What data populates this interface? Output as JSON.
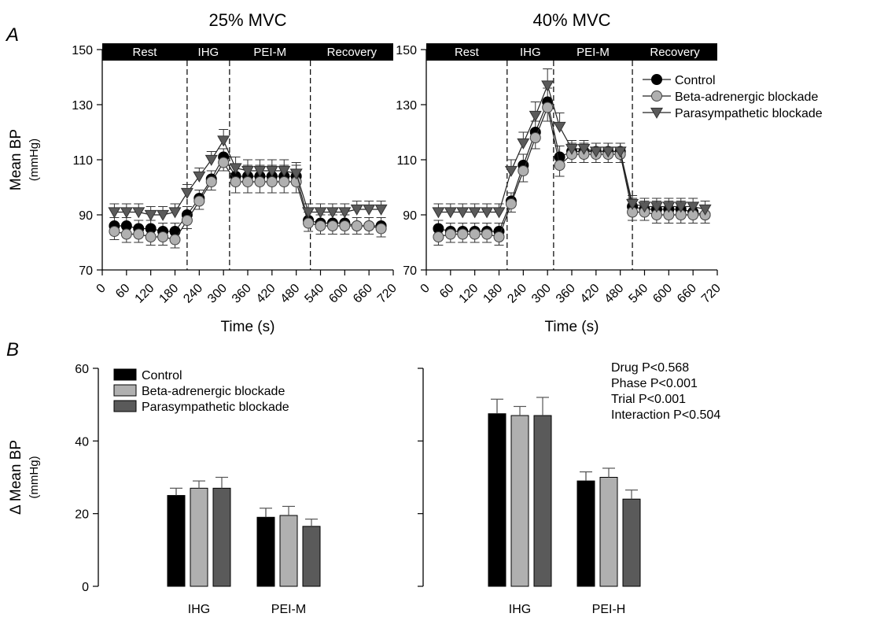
{
  "panel_labels": {
    "a": "A",
    "b": "B"
  },
  "colors": {
    "control": "#000000",
    "beta": "#b0b0b0",
    "para": "#5a5a5a",
    "axis": "#000000"
  },
  "phases": [
    "Rest",
    "IHG",
    "PEI-M",
    "Recovery"
  ],
  "legend_a": [
    "Control",
    "Beta-adrenergic blockade",
    "Parasympathetic blockade"
  ],
  "legend_b": [
    "Control",
    "Beta-adrenergic blockade",
    "Parasympathetic blockade"
  ],
  "stats": [
    "Drug P<0.568",
    "Phase P<0.001",
    "Trial  P<0.001",
    "Interaction  P<0.504"
  ],
  "chart_data": [
    {
      "type": "line",
      "title": "25% MVC",
      "xlabel": "Time (s)",
      "ylabel": "Mean BP",
      "yunit": "(mmHg)",
      "xlim": [
        0,
        720
      ],
      "ylim": [
        70,
        150
      ],
      "xticks": [
        0,
        60,
        120,
        180,
        240,
        300,
        360,
        420,
        480,
        540,
        600,
        660,
        720
      ],
      "yticks": [
        70,
        90,
        110,
        130,
        150
      ],
      "phase_boundaries": [
        210,
        315,
        515
      ],
      "x": [
        30,
        60,
        90,
        120,
        150,
        180,
        210,
        240,
        270,
        300,
        330,
        360,
        390,
        420,
        450,
        480,
        510,
        540,
        570,
        600,
        630,
        660,
        690
      ],
      "series": [
        {
          "name": "Control",
          "values": [
            86,
            86,
            85,
            85,
            84,
            84,
            90,
            96,
            103,
            111,
            104,
            104,
            104,
            104,
            104,
            104,
            88,
            87,
            87,
            87,
            86,
            86,
            86
          ],
          "errors": [
            3,
            3,
            3,
            3,
            3,
            3,
            3,
            3,
            3,
            3,
            4,
            4,
            4,
            4,
            4,
            4,
            3,
            3,
            3,
            3,
            3,
            3,
            3
          ]
        },
        {
          "name": "Beta-adrenergic blockade",
          "values": [
            84,
            83,
            83,
            82,
            82,
            81,
            88,
            95,
            102,
            109,
            102,
            102,
            102,
            102,
            102,
            102,
            87,
            86,
            86,
            86,
            86,
            86,
            85
          ],
          "errors": [
            3,
            3,
            3,
            3,
            3,
            3,
            3,
            3,
            3,
            3,
            4,
            4,
            4,
            4,
            4,
            4,
            3,
            3,
            3,
            3,
            3,
            3,
            3
          ]
        },
        {
          "name": "Parasympathetic blockade",
          "values": [
            91,
            91,
            91,
            90,
            90,
            91,
            98,
            104,
            110,
            117,
            107,
            106,
            106,
            106,
            106,
            105,
            91,
            91,
            91,
            91,
            92,
            92,
            92
          ],
          "errors": [
            3,
            3,
            3,
            3,
            3,
            3,
            3,
            3,
            3,
            4,
            4,
            4,
            4,
            4,
            4,
            4,
            3,
            3,
            3,
            3,
            3,
            3,
            3
          ]
        }
      ]
    },
    {
      "type": "line",
      "title": "40% MVC",
      "xlabel": "Time (s)",
      "ylabel": "",
      "yunit": "",
      "xlim": [
        0,
        720
      ],
      "ylim": [
        70,
        150
      ],
      "xticks": [
        0,
        60,
        120,
        180,
        240,
        300,
        360,
        420,
        480,
        540,
        600,
        660,
        720
      ],
      "yticks": [
        70,
        90,
        110,
        130,
        150
      ],
      "phase_boundaries": [
        200,
        315,
        510
      ],
      "x": [
        30,
        60,
        90,
        120,
        150,
        180,
        210,
        240,
        270,
        300,
        330,
        360,
        390,
        420,
        450,
        480,
        510,
        540,
        570,
        600,
        630,
        660,
        690
      ],
      "series": [
        {
          "name": "Control",
          "values": [
            85,
            84,
            84,
            84,
            84,
            84,
            95,
            108,
            120,
            131,
            111,
            113,
            113,
            113,
            113,
            113,
            93,
            92,
            92,
            92,
            92,
            91,
            90
          ],
          "errors": [
            3,
            3,
            3,
            3,
            3,
            3,
            3,
            4,
            4,
            5,
            4,
            3,
            3,
            3,
            3,
            3,
            3,
            3,
            3,
            3,
            3,
            3,
            3
          ]
        },
        {
          "name": "Beta-adrenergic blockade",
          "values": [
            82,
            83,
            83,
            83,
            83,
            82,
            94,
            106,
            118,
            129,
            108,
            112,
            112,
            112,
            112,
            112,
            91,
            91,
            90,
            90,
            90,
            90,
            90
          ],
          "errors": [
            3,
            3,
            3,
            3,
            3,
            3,
            3,
            4,
            4,
            5,
            4,
            3,
            3,
            3,
            3,
            3,
            3,
            3,
            3,
            3,
            3,
            3,
            3
          ]
        },
        {
          "name": "Parasympathetic blockade",
          "values": [
            91,
            91,
            91,
            91,
            91,
            91,
            106,
            116,
            126,
            137,
            122,
            114,
            114,
            113,
            113,
            113,
            94,
            93,
            93,
            93,
            93,
            93,
            92
          ],
          "errors": [
            3,
            3,
            3,
            3,
            3,
            3,
            4,
            4,
            5,
            6,
            5,
            3,
            3,
            3,
            3,
            3,
            3,
            3,
            3,
            3,
            3,
            3,
            3
          ]
        }
      ]
    },
    {
      "type": "bar",
      "title": "",
      "xlabel": "",
      "ylabel": "Δ Mean BP",
      "yunit": "(mmHg)",
      "ylim": [
        0,
        60
      ],
      "yticks": [
        0,
        20,
        40,
        60
      ],
      "categories": [
        "IHG",
        "PEI-M"
      ],
      "series": [
        {
          "name": "Control",
          "values": [
            25,
            19
          ],
          "errors": [
            2,
            2.5
          ]
        },
        {
          "name": "Beta-adrenergic blockade",
          "values": [
            27,
            19.5
          ],
          "errors": [
            2,
            2.5
          ]
        },
        {
          "name": "Parasympathetic blockade",
          "values": [
            27,
            16.5
          ],
          "errors": [
            3,
            2
          ]
        }
      ]
    },
    {
      "type": "bar",
      "title": "",
      "xlabel": "",
      "ylabel": "",
      "yunit": "",
      "ylim": [
        0,
        60
      ],
      "yticks": [
        0,
        20,
        40,
        60
      ],
      "categories": [
        "IHG",
        "PEI-H"
      ],
      "series": [
        {
          "name": "Control",
          "values": [
            47.5,
            29
          ],
          "errors": [
            4,
            2.5
          ]
        },
        {
          "name": "Beta-adrenergic blockade",
          "values": [
            47,
            30
          ],
          "errors": [
            2.5,
            2.5
          ]
        },
        {
          "name": "Parasympathetic blockade",
          "values": [
            47,
            24
          ],
          "errors": [
            5,
            2.5
          ]
        }
      ]
    }
  ]
}
